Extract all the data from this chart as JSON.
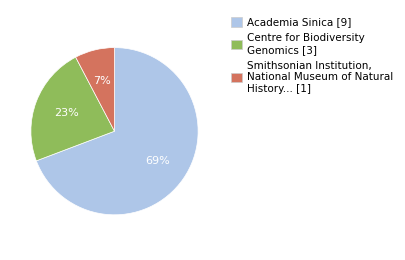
{
  "slices": [
    9,
    3,
    1
  ],
  "percentages": [
    "69%",
    "23%",
    "7%"
  ],
  "colors": [
    "#aec6e8",
    "#8fbc5a",
    "#d4735e"
  ],
  "legend_labels": [
    "Academia Sinica [9]",
    "Centre for Biodiversity\nGenomics [3]",
    "Smithsonian Institution,\nNational Museum of Natural\nHistory... [1]"
  ],
  "startangle": 90,
  "background_color": "#ffffff",
  "text_color": "#ffffff",
  "pct_fontsize": 8,
  "legend_fontsize": 7.5
}
